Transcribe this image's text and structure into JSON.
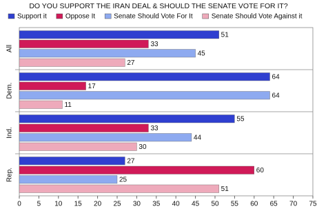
{
  "chart_data": {
    "type": "bar",
    "orientation": "horizontal",
    "title": "DO YOU SUPPORT THE IRAN DEAL & SHOULD THE SENATE VOTE FOR IT?",
    "categories": [
      "All",
      "Dem.",
      "Ind.",
      "Rep."
    ],
    "series": [
      {
        "name": "Support it",
        "color": "#2f3fd0",
        "values": [
          51,
          64,
          55,
          27
        ]
      },
      {
        "name": "Oppose It",
        "color": "#d01a58",
        "values": [
          33,
          17,
          33,
          60
        ]
      },
      {
        "name": "Senate Should Vote For It",
        "color": "#8eaaf0",
        "values": [
          45,
          64,
          44,
          25
        ]
      },
      {
        "name": "Senate Should Vote Against it",
        "color": "#eeaabb",
        "values": [
          27,
          11,
          30,
          51
        ]
      }
    ],
    "xlim": [
      0,
      75
    ],
    "xticks": [
      0,
      5,
      10,
      15,
      20,
      25,
      30,
      35,
      40,
      45,
      50,
      55,
      60,
      65,
      70,
      75
    ],
    "grid": false,
    "legend": "top"
  }
}
